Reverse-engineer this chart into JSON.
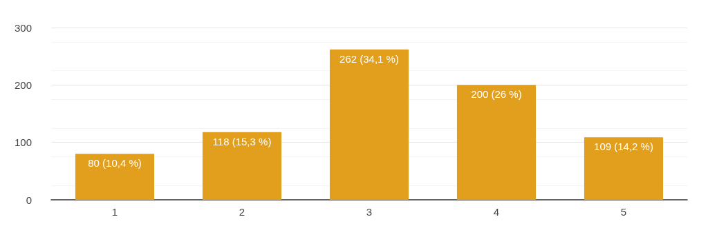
{
  "chart_data": {
    "type": "bar",
    "categories": [
      "1",
      "2",
      "3",
      "4",
      "5"
    ],
    "values": [
      80,
      118,
      262,
      200,
      109
    ],
    "value_labels": [
      "80 (10,4 %)",
      "118 (15,3 %)",
      "262 (34,1 %)",
      "200 (26 %)",
      "109 (14,2 %)"
    ],
    "color": "#e29f1d",
    "ylim": [
      0,
      300
    ],
    "yticks": [
      0,
      100,
      200,
      300
    ],
    "grid": "y"
  }
}
